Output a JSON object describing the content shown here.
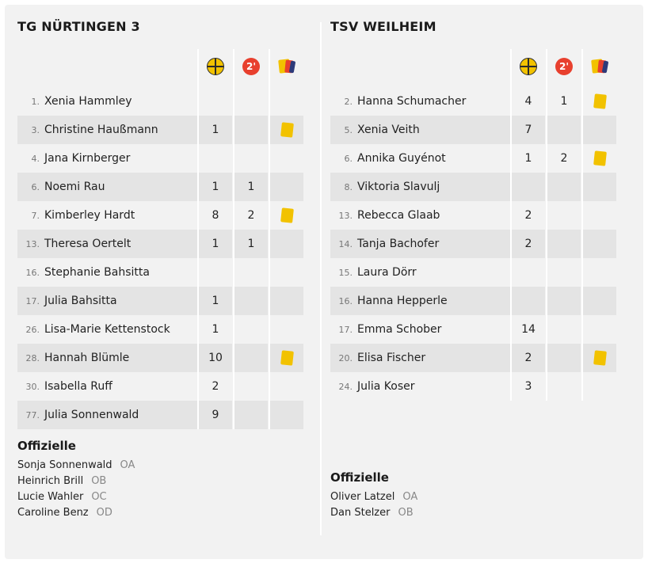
{
  "colors": {
    "background": "#f2f2f2",
    "row_alt": "#e4e4e4",
    "yellow": "#f2c200",
    "red": "#e8402e"
  },
  "column_icons": [
    "goal-ball-icon",
    "two-minute-penalty-icon",
    "cards-icon"
  ],
  "penalty_icon_text": "2'",
  "officials_heading": "Offizielle",
  "home": {
    "name": "TG NÜRTINGEN 3",
    "players": [
      {
        "num": "1.",
        "name": "Xenia Hammley",
        "goals": "",
        "twomin": "",
        "yellow": false
      },
      {
        "num": "3.",
        "name": "Christine Haußmann",
        "goals": "1",
        "twomin": "",
        "yellow": true
      },
      {
        "num": "4.",
        "name": "Jana Kirnberger",
        "goals": "",
        "twomin": "",
        "yellow": false
      },
      {
        "num": "6.",
        "name": "Noemi Rau",
        "goals": "1",
        "twomin": "1",
        "yellow": false
      },
      {
        "num": "7.",
        "name": "Kimberley Hardt",
        "goals": "8",
        "twomin": "2",
        "yellow": true
      },
      {
        "num": "13.",
        "name": "Theresa Oertelt",
        "goals": "1",
        "twomin": "1",
        "yellow": false
      },
      {
        "num": "16.",
        "name": "Stephanie Bahsitta",
        "goals": "",
        "twomin": "",
        "yellow": false
      },
      {
        "num": "17.",
        "name": "Julia Bahsitta",
        "goals": "1",
        "twomin": "",
        "yellow": false
      },
      {
        "num": "26.",
        "name": "Lisa-Marie Kettenstock",
        "goals": "1",
        "twomin": "",
        "yellow": false
      },
      {
        "num": "28.",
        "name": "Hannah Blümle",
        "goals": "10",
        "twomin": "",
        "yellow": true
      },
      {
        "num": "30.",
        "name": "Isabella Ruff",
        "goals": "2",
        "twomin": "",
        "yellow": false
      },
      {
        "num": "77.",
        "name": "Julia Sonnenwald",
        "goals": "9",
        "twomin": "",
        "yellow": false
      }
    ],
    "officials": [
      {
        "name": "Sonja Sonnenwald",
        "role": "OA"
      },
      {
        "name": "Heinrich Brill",
        "role": "OB"
      },
      {
        "name": "Lucie Wahler",
        "role": "OC"
      },
      {
        "name": "Caroline Benz",
        "role": "OD"
      }
    ]
  },
  "away": {
    "name": "TSV WEILHEIM",
    "players": [
      {
        "num": "2.",
        "name": "Hanna Schumacher",
        "goals": "4",
        "twomin": "1",
        "yellow": true
      },
      {
        "num": "5.",
        "name": "Xenia Veith",
        "goals": "7",
        "twomin": "",
        "yellow": false
      },
      {
        "num": "6.",
        "name": "Annika Guyénot",
        "goals": "1",
        "twomin": "2",
        "yellow": true
      },
      {
        "num": "8.",
        "name": "Viktoria Slavulj",
        "goals": "",
        "twomin": "",
        "yellow": false
      },
      {
        "num": "13.",
        "name": "Rebecca Glaab",
        "goals": "2",
        "twomin": "",
        "yellow": false
      },
      {
        "num": "14.",
        "name": "Tanja Bachofer",
        "goals": "2",
        "twomin": "",
        "yellow": false
      },
      {
        "num": "15.",
        "name": "Laura Dörr",
        "goals": "",
        "twomin": "",
        "yellow": false
      },
      {
        "num": "16.",
        "name": "Hanna Hepperle",
        "goals": "",
        "twomin": "",
        "yellow": false
      },
      {
        "num": "17.",
        "name": "Emma Schober",
        "goals": "14",
        "twomin": "",
        "yellow": false
      },
      {
        "num": "20.",
        "name": "Elisa Fischer",
        "goals": "2",
        "twomin": "",
        "yellow": true
      },
      {
        "num": "24.",
        "name": "Julia Koser",
        "goals": "3",
        "twomin": "",
        "yellow": false
      }
    ],
    "officials": [
      {
        "name": "Oliver Latzel",
        "role": "OA"
      },
      {
        "name": "Dan Stelzer",
        "role": "OB"
      }
    ]
  }
}
